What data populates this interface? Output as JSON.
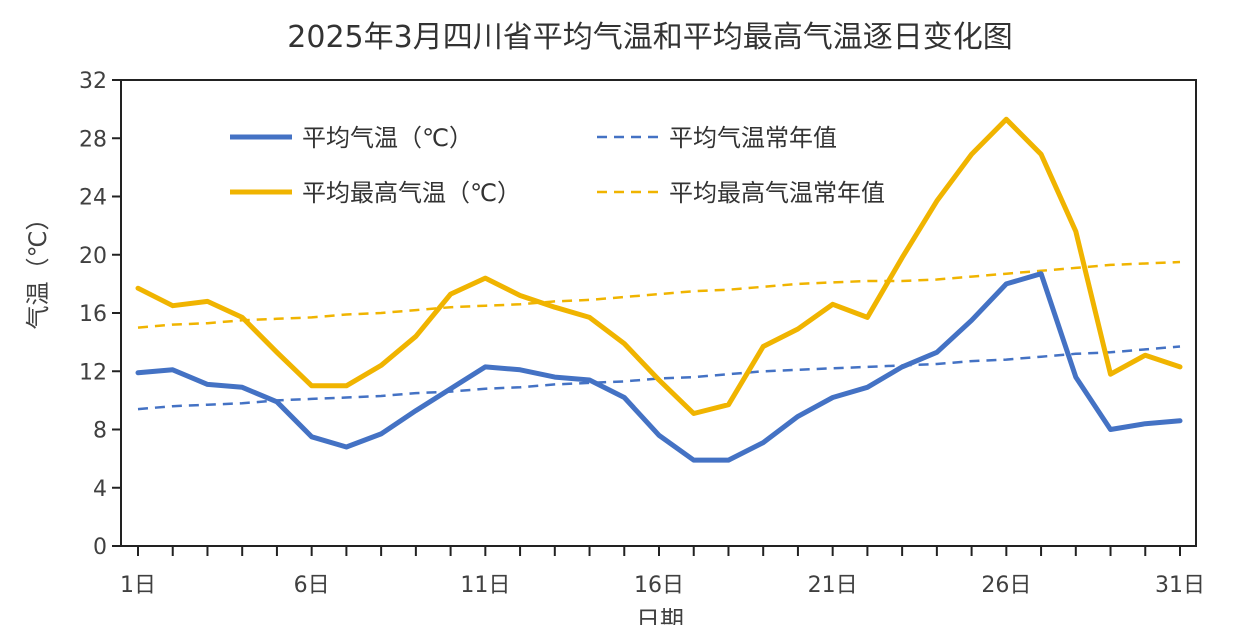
{
  "chart_data": {
    "type": "line",
    "title": "2025年3月四川省平均气温和平均最高气温逐日变化图",
    "xlabel": "日期",
    "ylabel": "气温（℃）",
    "ylim": [
      0,
      32
    ],
    "yticks": [
      0,
      4,
      8,
      12,
      16,
      20,
      24,
      28,
      32
    ],
    "xlim": [
      1,
      31
    ],
    "xtick_values": [
      1,
      6,
      11,
      16,
      21,
      26,
      31
    ],
    "xtick_labels": [
      "1日",
      "6日",
      "11日",
      "16日",
      "21日",
      "26日",
      "31日"
    ],
    "legend_position": "top-left inside",
    "grid": false,
    "x": [
      1,
      2,
      3,
      4,
      5,
      6,
      7,
      8,
      9,
      10,
      11,
      12,
      13,
      14,
      15,
      16,
      17,
      18,
      19,
      20,
      21,
      22,
      23,
      24,
      25,
      26,
      27,
      28,
      29,
      30,
      31
    ],
    "series": [
      {
        "name": "平均气温（℃）",
        "color": "#4472c4",
        "style": "solid",
        "values": [
          11.9,
          12.1,
          11.1,
          10.9,
          9.9,
          7.5,
          6.8,
          7.7,
          9.3,
          10.8,
          12.3,
          12.1,
          11.6,
          11.4,
          10.2,
          7.6,
          5.9,
          5.9,
          7.1,
          8.9,
          10.2,
          10.9,
          12.3,
          13.3,
          15.5,
          18.0,
          18.7,
          11.6,
          8.0,
          8.4,
          8.6
        ]
      },
      {
        "name": "平均气温常年值",
        "color": "#4472c4",
        "style": "dashed",
        "values": [
          9.4,
          9.6,
          9.7,
          9.8,
          10.0,
          10.1,
          10.2,
          10.3,
          10.5,
          10.6,
          10.8,
          10.9,
          11.1,
          11.2,
          11.3,
          11.5,
          11.6,
          11.8,
          12.0,
          12.1,
          12.2,
          12.3,
          12.4,
          12.5,
          12.7,
          12.8,
          13.0,
          13.2,
          13.3,
          13.5,
          13.7
        ]
      },
      {
        "name": "平均最高气温（℃）",
        "color": "#f0b400",
        "style": "solid",
        "values": [
          17.7,
          16.5,
          16.8,
          15.7,
          13.3,
          11.0,
          11.0,
          12.4,
          14.4,
          17.3,
          18.4,
          17.2,
          16.4,
          15.7,
          13.9,
          11.4,
          9.1,
          9.7,
          13.7,
          14.9,
          16.6,
          15.7,
          19.8,
          23.7,
          26.9,
          29.3,
          26.9,
          21.6,
          11.8,
          13.1,
          12.3
        ]
      },
      {
        "name": "平均最高气温常年值",
        "color": "#f0b400",
        "style": "dashed",
        "values": [
          15.0,
          15.2,
          15.3,
          15.5,
          15.6,
          15.7,
          15.9,
          16.0,
          16.2,
          16.4,
          16.5,
          16.6,
          16.8,
          16.9,
          17.1,
          17.3,
          17.5,
          17.6,
          17.8,
          18.0,
          18.1,
          18.2,
          18.2,
          18.3,
          18.5,
          18.7,
          18.9,
          19.1,
          19.3,
          19.4,
          19.5
        ]
      }
    ]
  }
}
